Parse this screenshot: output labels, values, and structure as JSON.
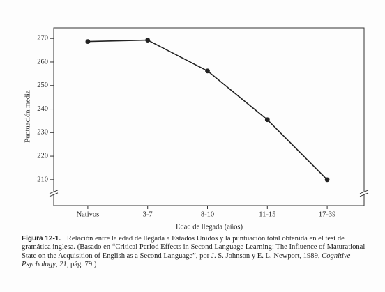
{
  "chart_data": {
    "type": "line",
    "y_label": "Puntuación media",
    "x_label": "Edad de llegada (años)",
    "categories": [
      "Nativos",
      "3-7",
      "8-10",
      "11-15",
      "17-39"
    ],
    "values": [
      268.7,
      269.3,
      256.2,
      235.5,
      210
    ],
    "color": "#222222",
    "ylim": [
      199,
      274.5
    ],
    "yticks": [
      210,
      220,
      230,
      240,
      250,
      260,
      270
    ],
    "grid": false,
    "axis_break": true
  },
  "caption": {
    "label": "Figura 12-1.",
    "segments": [
      {
        "text": "Relación entre la edad de llegada a Estados Unidos y la puntuación total obtenida en el test de gramática inglesa. (Basado en “Critical Period Effects in Second Language Learning: The Influence of Maturational State on the Acquisition of English as a Second Language”, por J. S. Johnson y E. L. Newport, 1989, ",
        "italic": false
      },
      {
        "text": "Cognitive Psychology",
        "italic": true
      },
      {
        "text": ", ",
        "italic": false
      },
      {
        "text": "21",
        "italic": true
      },
      {
        "text": ", pág. 79.)",
        "italic": false
      }
    ]
  }
}
